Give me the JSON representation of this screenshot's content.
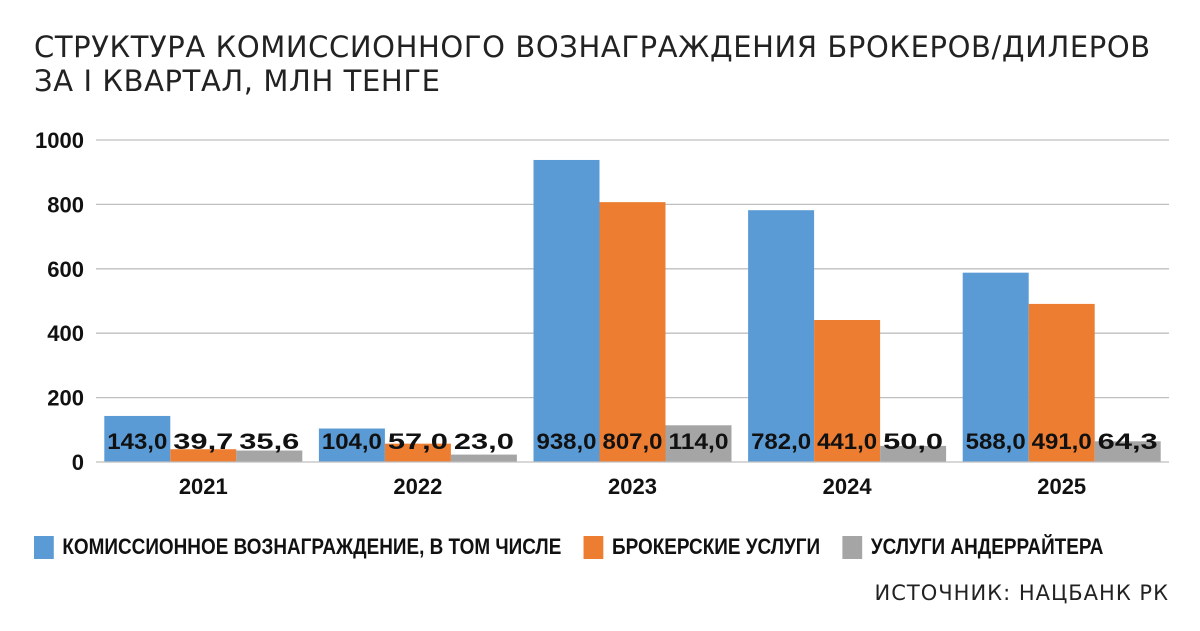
{
  "title_line1": "СТРУКТУРА КОМИССИОННОГО ВОЗНАГРАЖДЕНИЯ БРОКЕРОВ/ДИЛЕРОВ",
  "title_line2": "ЗА I КВАРТАЛ, МЛН ТЕНГЕ",
  "source": "ИСТОЧНИК: НАЦБАНК РК",
  "chart_data": {
    "type": "bar",
    "categories": [
      "2021",
      "2022",
      "2023",
      "2024",
      "2025"
    ],
    "series": [
      {
        "name": "КОМИССИОННОЕ ВОЗНАГРАЖДЕНИЕ, В ТОМ ЧИСЛЕ",
        "color": "#5b9bd5",
        "values": [
          143.0,
          104.0,
          938.0,
          782.0,
          588.0
        ],
        "labels": [
          "143,0",
          "104,0",
          "938,0",
          "782,0",
          "588,0"
        ]
      },
      {
        "name": "БРОКЕРСКИЕ УСЛУГИ",
        "color": "#ed7d31",
        "values": [
          39.7,
          57.0,
          807.0,
          441.0,
          491.0
        ],
        "labels": [
          "39,7",
          "57,0",
          "807,0",
          "441,0",
          "491,0"
        ]
      },
      {
        "name": "УСЛУГИ АНДЕРРАЙТЕРА",
        "color": "#a5a5a5",
        "values": [
          35.6,
          23.0,
          114.0,
          50.0,
          64.3
        ],
        "labels": [
          "35,6",
          "23,0",
          "114,0",
          "50,0",
          "64,3"
        ]
      }
    ],
    "yticks": [
      0,
      200,
      400,
      600,
      800,
      1000
    ],
    "ylim": [
      0,
      1000
    ],
    "grid": true,
    "legend_position": "bottom"
  }
}
